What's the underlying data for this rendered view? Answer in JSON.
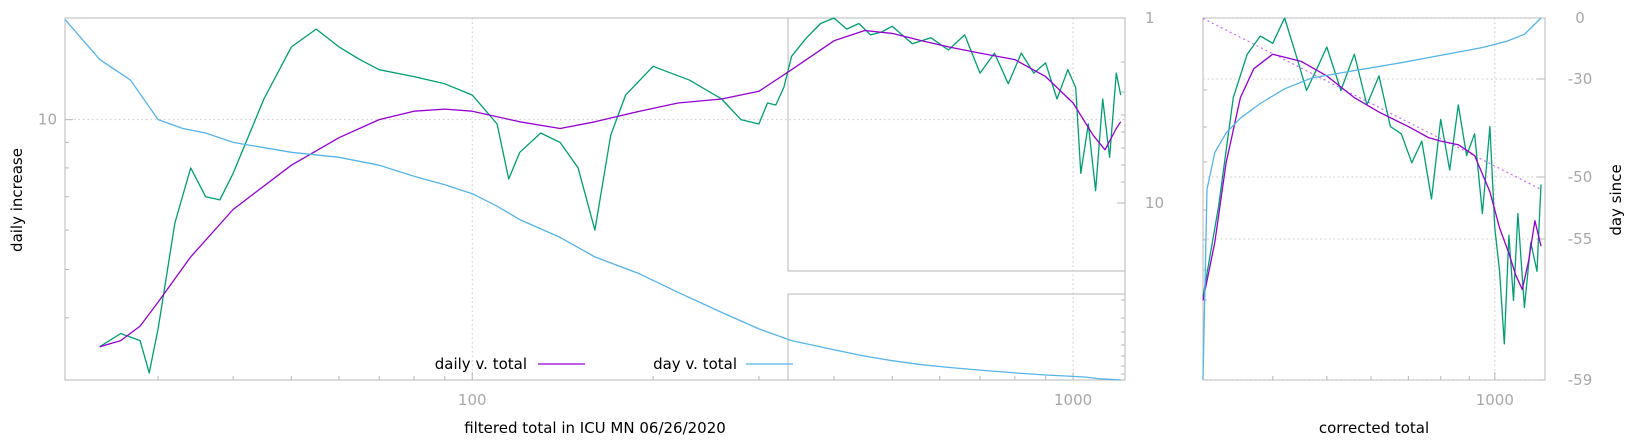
{
  "chart_data": [
    {
      "type": "line",
      "xlabel": "filtered total in ICU MN 06/26/2020",
      "ylabel": "daily increase",
      "xscale": "log",
      "yscale": "log",
      "xlim": [
        21,
        1220
      ],
      "ylim": [
        3,
        16
      ],
      "x_ticks": [
        100,
        1000
      ],
      "x_tick_labels": [
        "100",
        "1000"
      ],
      "y_ticks": [
        10
      ],
      "y_tick_labels": [
        "10"
      ],
      "grid": true,
      "legend_position": "bottom-center",
      "series": [
        {
          "name": "daily v. total",
          "color": "#9400d3",
          "x": [
            24,
            26,
            28,
            30,
            34,
            40,
            50,
            60,
            70,
            80,
            90,
            100,
            120,
            140,
            160,
            190,
            220,
            260,
            300,
            340,
            400,
            450,
            500,
            560,
            620,
            700,
            800,
            900,
            1000,
            1080,
            1130,
            1180,
            1200
          ],
          "y": [
            3.5,
            3.6,
            3.85,
            4.3,
            5.3,
            6.6,
            8.1,
            9.2,
            10.0,
            10.4,
            10.5,
            10.4,
            9.9,
            9.6,
            9.9,
            10.4,
            10.8,
            11.0,
            11.4,
            12.6,
            14.4,
            15.1,
            14.9,
            14.4,
            14.0,
            13.6,
            13.2,
            12.2,
            10.8,
            9.3,
            8.7,
            9.6,
            9.9
          ]
        },
        {
          "name": "",
          "color": "#009e73",
          "x": [
            24,
            26,
            28,
            29,
            30,
            32,
            34,
            36,
            38,
            40,
            45,
            50,
            55,
            60,
            65,
            70,
            80,
            90,
            100,
            110,
            115,
            120,
            130,
            140,
            150,
            160,
            170,
            180,
            200,
            230,
            260,
            280,
            300,
            310,
            320,
            330,
            340,
            360,
            380,
            400,
            420,
            440,
            460,
            480,
            500,
            540,
            580,
            620,
            660,
            700,
            740,
            780,
            820,
            860,
            900,
            940,
            980,
            1010,
            1030,
            1060,
            1090,
            1120,
            1150,
            1180,
            1200
          ],
          "y": [
            3.5,
            3.72,
            3.6,
            3.1,
            3.8,
            6.2,
            8.0,
            7.0,
            6.9,
            7.8,
            11.0,
            14.0,
            15.2,
            14.0,
            13.2,
            12.6,
            12.2,
            11.8,
            11.2,
            9.8,
            7.6,
            8.6,
            9.4,
            9.0,
            8.0,
            6.0,
            9.3,
            11.2,
            12.8,
            12.0,
            11.0,
            10.0,
            9.8,
            10.8,
            10.7,
            11.6,
            13.4,
            14.6,
            15.6,
            16.0,
            15.2,
            15.6,
            14.8,
            15.0,
            15.4,
            14.2,
            14.6,
            13.8,
            14.8,
            12.4,
            13.6,
            11.8,
            13.6,
            12.4,
            13.0,
            11.0,
            12.6,
            11.6,
            7.8,
            9.8,
            7.2,
            11.0,
            8.4,
            12.4,
            11.2
          ]
        },
        {
          "name": "day v. total",
          "color": "#56b4e9",
          "x": [
            21,
            24,
            27,
            30,
            33,
            36,
            40,
            50,
            60,
            70,
            80,
            90,
            100,
            110,
            120,
            140,
            160,
            190,
            220,
            260,
            300,
            340,
            400,
            450,
            500,
            560,
            620,
            700,
            800,
            900,
            1000,
            1050,
            1100,
            1150,
            1200
          ],
          "y": [
            15.9,
            13.2,
            12.0,
            10.0,
            9.6,
            9.4,
            9.0,
            8.6,
            8.4,
            8.1,
            7.7,
            7.4,
            7.1,
            6.7,
            6.3,
            5.8,
            5.3,
            4.9,
            4.5,
            4.1,
            3.8,
            3.6,
            3.45,
            3.35,
            3.28,
            3.22,
            3.18,
            3.14,
            3.1,
            3.07,
            3.05,
            3.04,
            3.02,
            3.01,
            3.0
          ]
        }
      ]
    },
    {
      "type": "line",
      "xlabel": "corrected total",
      "ylabel": "day since",
      "xscale": "log",
      "xlim": [
        300,
        1230
      ],
      "x_ticks": [
        1000
      ],
      "x_tick_labels": [
        "1000"
      ],
      "y2lim": [
        -59,
        0
      ],
      "y2_ticks": [
        0,
        -30,
        -50,
        -55,
        -59
      ],
      "y2_tick_labels": [
        "0",
        "-30",
        "-50",
        "-55",
        "-59"
      ],
      "grid": true,
      "series": [
        {
          "name": "",
          "color": "#9400d3",
          "x": [
            300,
            315,
            330,
            350,
            370,
            400,
            450,
            500,
            560,
            620,
            700,
            760,
            800,
            860,
            920,
            980,
            1020,
            1060,
            1090,
            1120,
            1150,
            1180,
            1210
          ],
          "y": [
            0.22,
            0.38,
            0.6,
            0.78,
            0.86,
            0.9,
            0.88,
            0.84,
            0.78,
            0.74,
            0.7,
            0.67,
            0.66,
            0.65,
            0.62,
            0.52,
            0.42,
            0.35,
            0.29,
            0.25,
            0.33,
            0.44,
            0.37
          ]
        },
        {
          "name": "",
          "color": "#009e73",
          "x": [
            300,
            320,
            340,
            360,
            380,
            400,
            420,
            440,
            460,
            480,
            500,
            530,
            560,
            590,
            620,
            650,
            680,
            710,
            740,
            770,
            800,
            830,
            860,
            890,
            920,
            950,
            980,
            1000,
            1020,
            1040,
            1060,
            1080,
            1100,
            1130,
            1160,
            1190,
            1210
          ],
          "y": [
            0.23,
            0.48,
            0.78,
            0.9,
            0.95,
            0.93,
            1.0,
            0.9,
            0.8,
            0.86,
            0.92,
            0.8,
            0.9,
            0.76,
            0.84,
            0.7,
            0.68,
            0.6,
            0.66,
            0.5,
            0.72,
            0.58,
            0.76,
            0.62,
            0.68,
            0.46,
            0.7,
            0.42,
            0.3,
            0.1,
            0.4,
            0.22,
            0.46,
            0.2,
            0.38,
            0.3,
            0.54
          ]
        },
        {
          "name": "",
          "color": "#56b4e9",
          "x": [
            300,
            305,
            315,
            330,
            350,
            380,
            420,
            470,
            530,
            600,
            680,
            760,
            850,
            950,
            1050,
            1130,
            1180,
            1210
          ],
          "y": [
            -59,
            -51,
            -45,
            -41,
            -38,
            -35,
            -32,
            -29.5,
            -27,
            -24.5,
            -22,
            -19.5,
            -17,
            -14.5,
            -11.5,
            -8,
            -3,
            0
          ]
        },
        {
          "name": "",
          "color": "#cc66ff",
          "dashed": true,
          "x": [
            300,
            1210
          ],
          "y": [
            -0.2,
            -51
          ]
        }
      ]
    }
  ]
}
